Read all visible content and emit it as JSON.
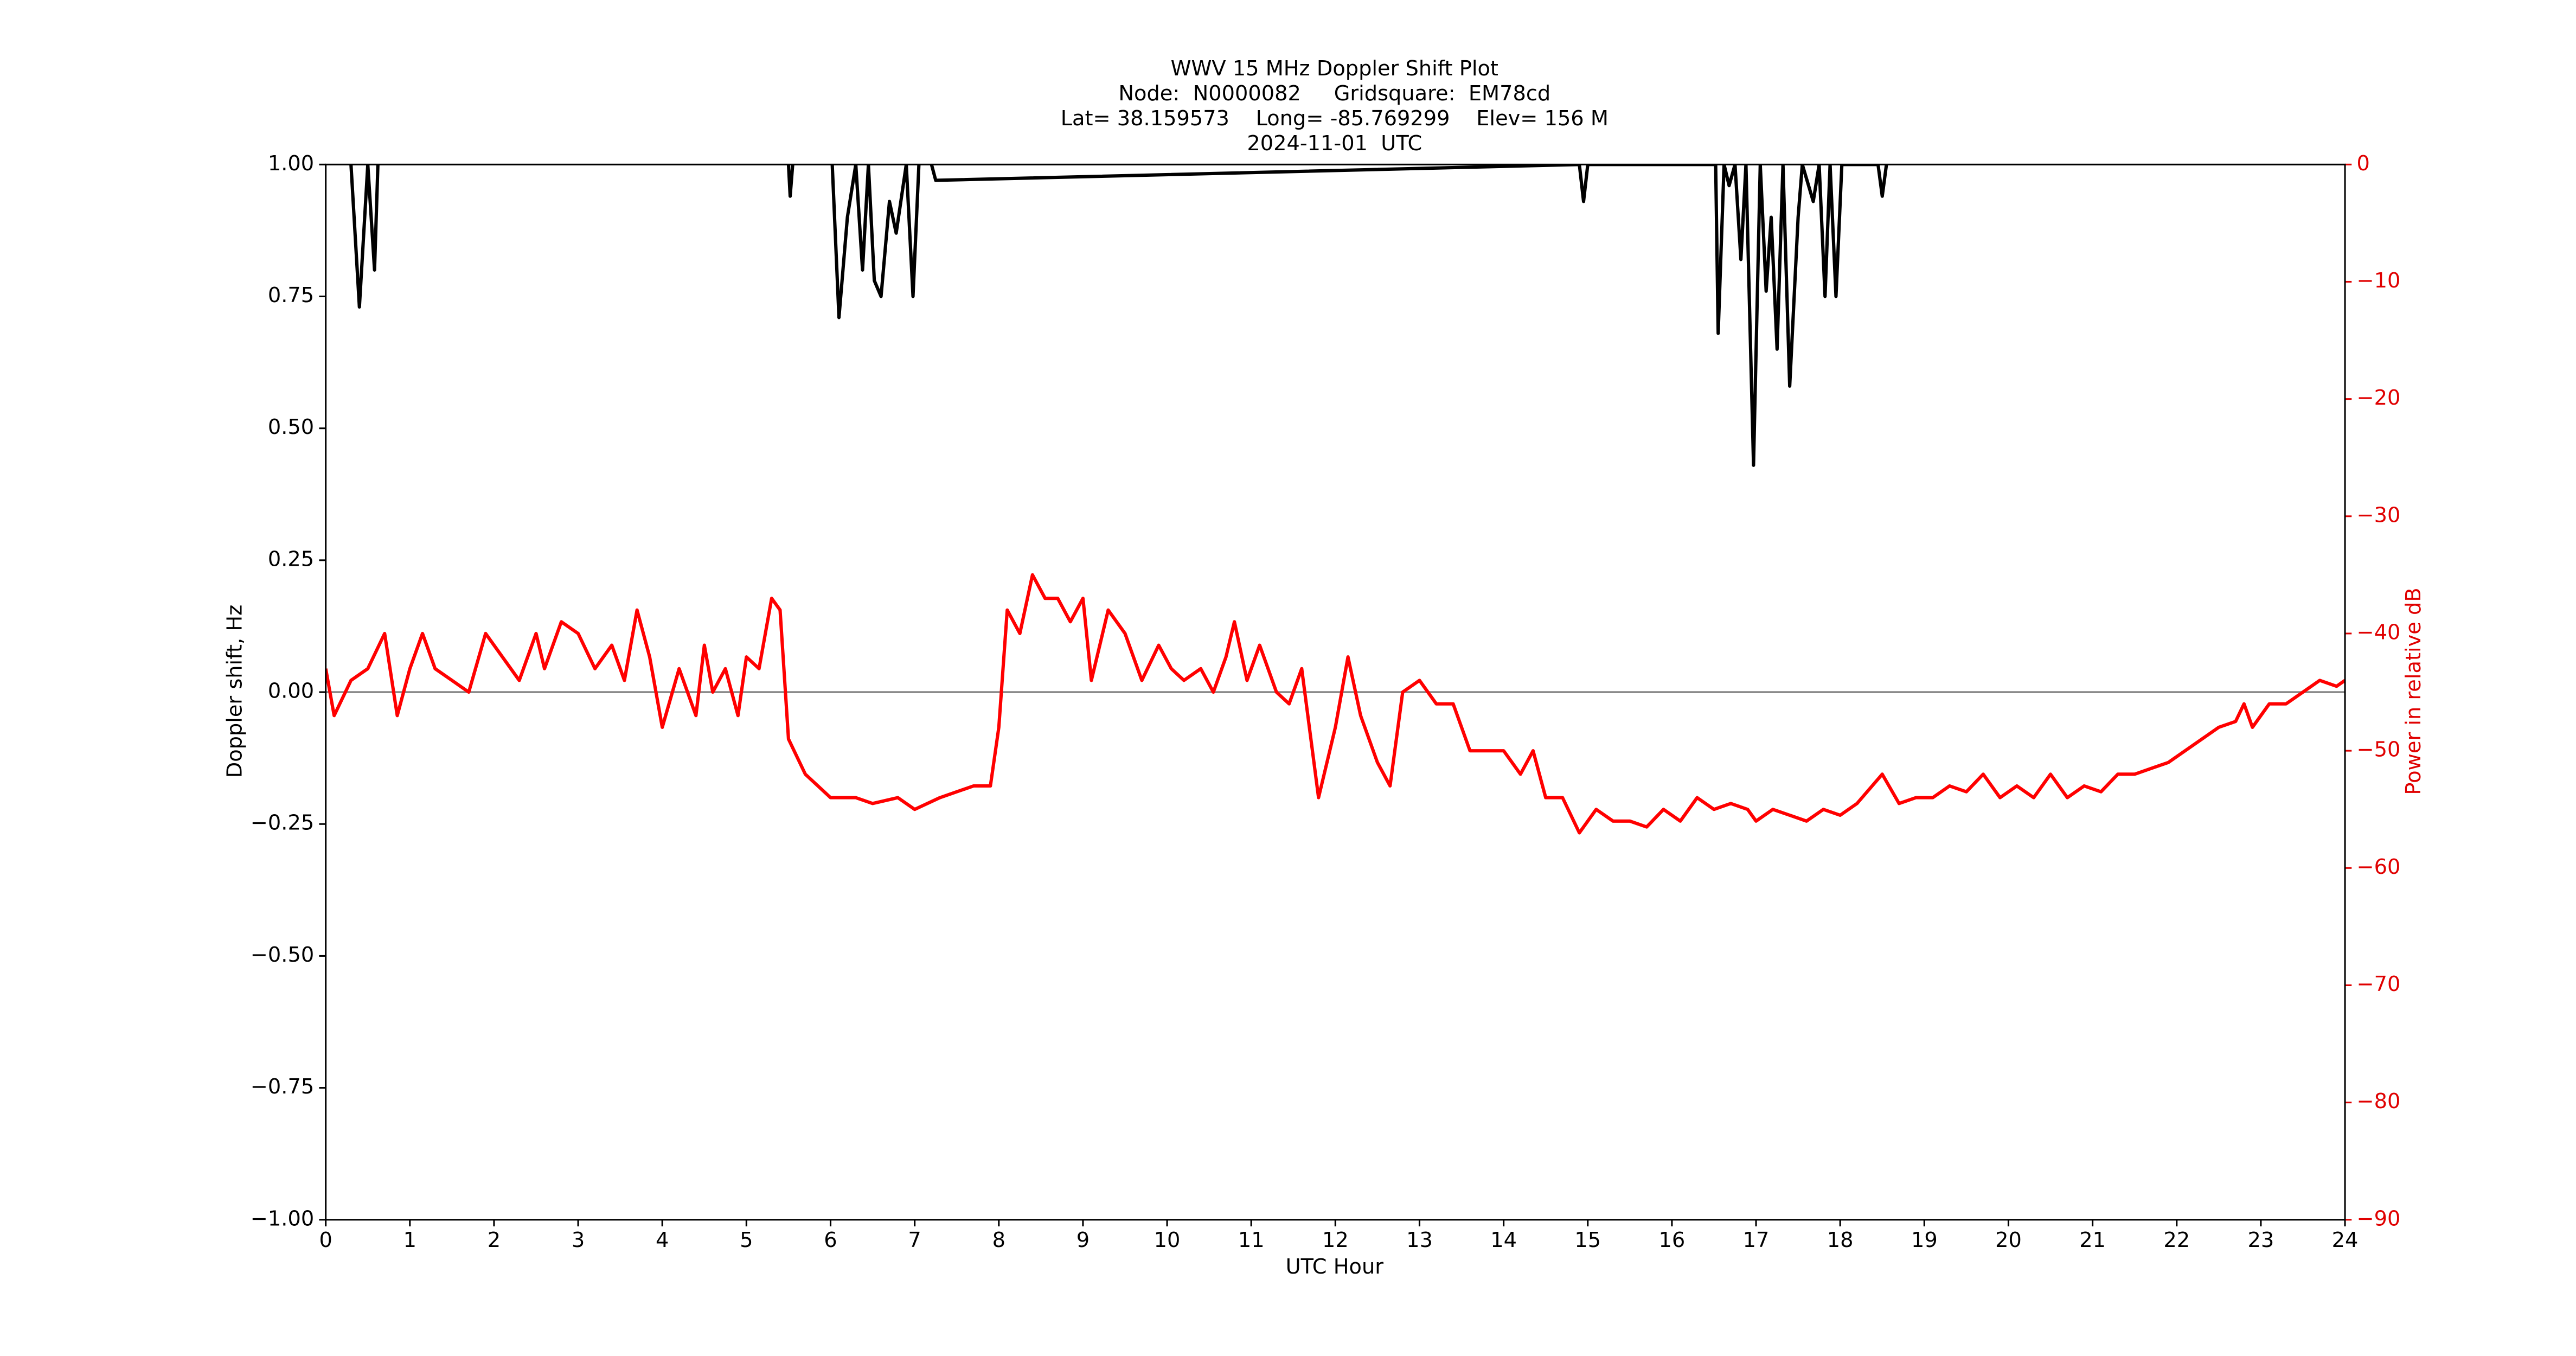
{
  "chart_data": {
    "type": "line",
    "title": [
      "WWV 15 MHz Doppler Shift Plot",
      "Node:  N0000082     Gridsquare:  EM78cd",
      "Lat= 38.159573    Long= -85.769299    Elev= 156 M",
      "2024-11-01  UTC"
    ],
    "xlabel": "UTC Hour",
    "ylabel": "Doppler shift, Hz",
    "y2label": "Power in relative dB",
    "xlim": [
      0,
      24
    ],
    "xticks": [
      0,
      1,
      2,
      3,
      4,
      5,
      6,
      7,
      8,
      9,
      10,
      11,
      12,
      13,
      14,
      15,
      16,
      17,
      18,
      19,
      20,
      21,
      22,
      23,
      24
    ],
    "ylim": [
      -1,
      1
    ],
    "yticks": [
      {
        "value": -1,
        "label": "−1.00"
      },
      {
        "value": -0.75,
        "label": "−0.75"
      },
      {
        "value": -0.5,
        "label": "−0.50"
      },
      {
        "value": -0.25,
        "label": "−0.25"
      },
      {
        "value": 0,
        "label": "0.00"
      },
      {
        "value": 0.25,
        "label": "0.25"
      },
      {
        "value": 0.5,
        "label": "0.50"
      },
      {
        "value": 0.75,
        "label": "0.75"
      },
      {
        "value": 1,
        "label": "1.00"
      }
    ],
    "y2lim": [
      -90,
      0
    ],
    "y2ticks": [
      {
        "value": -90,
        "label": "−90"
      },
      {
        "value": -80,
        "label": "−80"
      },
      {
        "value": -70,
        "label": "−70"
      },
      {
        "value": -60,
        "label": "−60"
      },
      {
        "value": -50,
        "label": "−50"
      },
      {
        "value": -40,
        "label": "−40"
      },
      {
        "value": -30,
        "label": "−30"
      },
      {
        "value": -20,
        "label": "−20"
      },
      {
        "value": -10,
        "label": "−10"
      },
      0
    ],
    "hline": 0,
    "hline_color": "#888888",
    "series": [
      {
        "name": "Doppler shift",
        "color": "#000000",
        "x": [
          0.3,
          0.4,
          0.5,
          0.58,
          0.62,
          5.4,
          5.5,
          5.52,
          5.55,
          5.6,
          6.02,
          6.1,
          6.2,
          6.3,
          6.38,
          6.45,
          6.52,
          6.6,
          6.7,
          6.78,
          6.9,
          6.98,
          7.05,
          7.12,
          7.2,
          7.25,
          14.9,
          14.95,
          15.0,
          16.52,
          16.55,
          16.62,
          16.68,
          16.75,
          16.82,
          16.88,
          16.97,
          17.05,
          17.12,
          17.18,
          17.25,
          17.32,
          17.4,
          17.5,
          17.55,
          17.68,
          17.75,
          17.82,
          17.88,
          17.95,
          18.02,
          18.45,
          18.5,
          18.55
        ],
        "values": [
          1.0,
          0.73,
          1.0,
          0.8,
          1.0,
          null,
          1.0,
          0.94,
          1.0,
          null,
          1.0,
          0.71,
          0.9,
          1.0,
          0.8,
          1.0,
          0.78,
          0.75,
          0.93,
          0.87,
          1.0,
          0.75,
          1.0,
          null,
          1.0,
          0.97,
          1.0,
          0.93,
          1.0,
          1.0,
          0.68,
          1.0,
          0.96,
          1.0,
          0.82,
          1.0,
          0.43,
          1.0,
          0.76,
          0.9,
          0.65,
          1.0,
          0.58,
          0.9,
          1.0,
          0.93,
          1.0,
          0.75,
          1.0,
          0.75,
          1.0,
          1.0,
          0.94,
          1.0
        ]
      },
      {
        "name": "Power",
        "color": "#ff0000",
        "axis": "y2",
        "x": [
          0,
          0.1,
          0.3,
          0.5,
          0.7,
          0.85,
          1.0,
          1.15,
          1.3,
          1.5,
          1.7,
          1.9,
          2.1,
          2.3,
          2.5,
          2.6,
          2.8,
          3.0,
          3.2,
          3.4,
          3.55,
          3.7,
          3.85,
          4.0,
          4.2,
          4.4,
          4.5,
          4.6,
          4.75,
          4.9,
          5.0,
          5.15,
          5.3,
          5.4,
          5.5,
          5.7,
          6.0,
          6.3,
          6.5,
          6.8,
          7.0,
          7.3,
          7.5,
          7.7,
          7.9,
          8.0,
          8.1,
          8.25,
          8.4,
          8.55,
          8.7,
          8.85,
          9.0,
          9.1,
          9.3,
          9.5,
          9.7,
          9.9,
          10.05,
          10.2,
          10.4,
          10.55,
          10.7,
          10.8,
          10.95,
          11.1,
          11.3,
          11.45,
          11.6,
          11.8,
          12.0,
          12.15,
          12.3,
          12.5,
          12.65,
          12.8,
          13.0,
          13.2,
          13.4,
          13.6,
          13.8,
          14.0,
          14.2,
          14.35,
          14.5,
          14.7,
          14.9,
          15.1,
          15.3,
          15.5,
          15.7,
          15.9,
          16.1,
          16.3,
          16.5,
          16.7,
          16.9,
          17.0,
          17.2,
          17.4,
          17.6,
          17.8,
          18.0,
          18.2,
          18.5,
          18.7,
          18.9,
          19.1,
          19.3,
          19.5,
          19.7,
          19.9,
          20.1,
          20.3,
          20.5,
          20.7,
          20.9,
          21.1,
          21.3,
          21.5,
          21.7,
          21.9,
          22.1,
          22.3,
          22.5,
          22.7,
          22.8,
          22.9,
          23.1,
          23.3,
          23.5,
          23.7,
          23.9,
          24.0
        ],
        "values": [
          -43,
          -47,
          -44,
          -43,
          -40,
          -47,
          -43,
          -40,
          -43,
          -44,
          -45,
          -40,
          -42,
          -44,
          -40,
          -43,
          -39,
          -40,
          -43,
          -41,
          -44,
          -38,
          -42,
          -48,
          -43,
          -47,
          -41,
          -45,
          -43,
          -47,
          -42,
          -43,
          -37,
          -38,
          -49,
          -52,
          -54,
          -54,
          -54.5,
          -54,
          -55,
          -54,
          -53.5,
          -53,
          -53,
          -48,
          -38,
          -40,
          -35,
          -37,
          -37,
          -39,
          -37,
          -44,
          -38,
          -40,
          -44,
          -41,
          -43,
          -44,
          -43,
          -45,
          -42,
          -39,
          -44,
          -41,
          -45,
          -46,
          -43,
          -54,
          -48,
          -42,
          -47,
          -51,
          -53,
          -45,
          -44,
          -46,
          -46,
          -50,
          -50,
          -50,
          -52,
          -50,
          -54,
          -54,
          -57,
          -55,
          -56,
          -56,
          -56.5,
          -55,
          -56,
          -54,
          -55,
          -54.5,
          -55,
          -56,
          -55,
          -55.5,
          -56,
          -55,
          -55.5,
          -54.5,
          -52,
          -54.5,
          -54,
          -54,
          -53,
          -53.5,
          -52,
          -54,
          -53,
          -54,
          -52,
          -54,
          -53,
          -53.5,
          -52,
          -52,
          -51.5,
          -51,
          -50,
          -49,
          -48,
          -47.5,
          -46,
          -48,
          -46,
          -46,
          -45,
          -44,
          -44.5,
          -44
        ]
      }
    ]
  }
}
